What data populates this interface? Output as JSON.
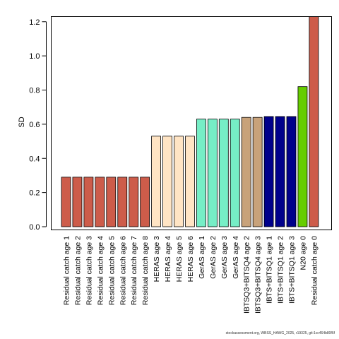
{
  "chart_data": {
    "type": "bar",
    "ylabel": "SD",
    "ylim": [
      0,
      1.23
    ],
    "yticks": [
      0.0,
      0.2,
      0.4,
      0.6,
      0.8,
      1.0,
      1.2
    ],
    "ytick_labels": [
      "0.0",
      "0.2",
      "0.4",
      "0.6",
      "0.8",
      "1.0",
      "1.2"
    ],
    "categories": [
      "Residual catch age 1",
      "Residual catch age 2",
      "Residual catch age 3",
      "Residual catch age 4",
      "Residual catch age 5",
      "Residual catch age 6",
      "Residual catch age 7",
      "Residual catch age 8",
      "HERAS age 3",
      "HERAS age 4",
      "HERAS age 5",
      "HERAS age 6",
      "GerAS age 1",
      "GerAS age 2",
      "GerAS age 3",
      "GerAS age 4",
      "IBTSQ3+BITSQ4 age 2",
      "IBTSQ3+BITSQ4 age 3",
      "IBTS+BITSQ1 age 1",
      "IBTS+BITSQ1 age 2",
      "IBTS+BITSQ1 age 3",
      "N20 age 0",
      "Residual catch age 0"
    ],
    "values": [
      0.29,
      0.29,
      0.29,
      0.29,
      0.29,
      0.29,
      0.29,
      0.29,
      0.53,
      0.53,
      0.53,
      0.53,
      0.63,
      0.63,
      0.63,
      0.63,
      0.64,
      0.64,
      0.645,
      0.645,
      0.645,
      0.82,
      1.23
    ],
    "colors": [
      "#cd5c4a",
      "#cd5c4a",
      "#cd5c4a",
      "#cd5c4a",
      "#cd5c4a",
      "#cd5c4a",
      "#cd5c4a",
      "#cd5c4a",
      "#ffe4c4",
      "#ffe4c4",
      "#ffe4c4",
      "#ffe4c4",
      "#76eec6",
      "#76eec6",
      "#76eec6",
      "#76eec6",
      "#c8a27a",
      "#c8a27a",
      "#00008b",
      "#00008b",
      "#00008b",
      "#66cd00",
      "#cd5c4a"
    ],
    "grid": false
  },
  "footnote": "stockassessment.org, WBSS_HAWG_2025, r19325, git:1cc464b80f6f"
}
